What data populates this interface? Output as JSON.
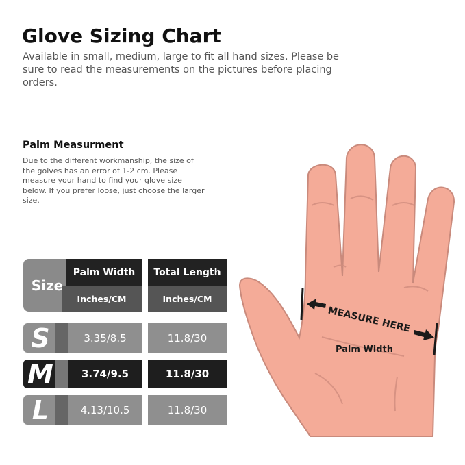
{
  "title": "Glove Sizing Chart",
  "subtitle": "Available in small, medium, large to fit all hand sizes. Please be sure to read the measurements on the pictures before placing orders.",
  "palm": {
    "heading": "Palm Measurment",
    "text": "Due to the different workmanship, the size of the golves has an error of 1-2 cm. Please measure your hand to find your glove size below. If you prefer loose, just choose the larger size."
  },
  "table": {
    "size_label": "Size",
    "col1": "Palm Width",
    "col2": "Total Length",
    "unit1": "Inches/CM",
    "unit2": "Inches/CM",
    "rows": [
      {
        "size": "S",
        "palm": "3.35/8.5",
        "length": "11.8/30"
      },
      {
        "size": "M",
        "palm": "3.74/9.5",
        "length": "11.8/30"
      },
      {
        "size": "L",
        "palm": "4.13/10.5",
        "length": "11.8/30"
      }
    ]
  },
  "hand": {
    "measure": "MEASURE HERE",
    "label": "Palm Width",
    "skin": "#f4ab98",
    "outline": "#c98a7c"
  }
}
